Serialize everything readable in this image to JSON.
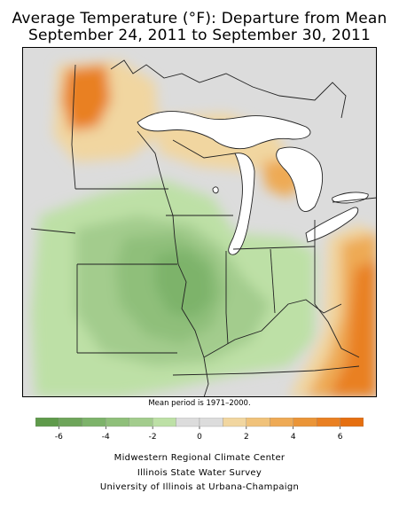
{
  "title": {
    "line1": "Average Temperature (°F): Departure from Mean",
    "line2": "September 24, 2011 to September 30, 2011"
  },
  "mean_period_note": "Mean period is 1971–2000.",
  "legend": {
    "labels": [
      "-6",
      "-4",
      "-2",
      "0",
      "2",
      "4",
      "6"
    ],
    "bins": [
      {
        "range": "< -6",
        "color": "#5f9a4b"
      },
      {
        "range": "-6 to -5",
        "color": "#6ea55a"
      },
      {
        "range": "-5 to -4",
        "color": "#7db36a"
      },
      {
        "range": "-4 to -3",
        "color": "#8fbf7a"
      },
      {
        "range": "-3 to -2",
        "color": "#a3cc8d"
      },
      {
        "range": "-2 to -1",
        "color": "#bde0a6"
      },
      {
        "range": "-1 to 0",
        "color": "#dcdcdc"
      },
      {
        "range": "0 to 1",
        "color": "#dcdcdc"
      },
      {
        "range": "1 to 2",
        "color": "#f1d6a0"
      },
      {
        "range": "2 to 3",
        "color": "#f0c27a"
      },
      {
        "range": "3 to 4",
        "color": "#eeaa55"
      },
      {
        "range": "4 to 5",
        "color": "#ea9538"
      },
      {
        "range": "5 to 6",
        "color": "#e98022"
      },
      {
        "range": "> 6",
        "color": "#e56f10"
      }
    ]
  },
  "credits": [
    "Midwestern Regional Climate Center",
    "Illinois State Water Survey",
    "University of Illinois at Urbana-Champaign"
  ],
  "map_colors": {
    "neutral": "#dcdcdc",
    "cool_light": "#bde0a6",
    "cool_mid": "#a3cc8d",
    "cool_strong": "#8fbf7a",
    "cool_deep": "#7db36a",
    "warm_light": "#f1d6a0",
    "warm_mid": "#eeaa55",
    "warm_strong": "#e98022",
    "lake": "#ffffff",
    "border": "#222222"
  }
}
